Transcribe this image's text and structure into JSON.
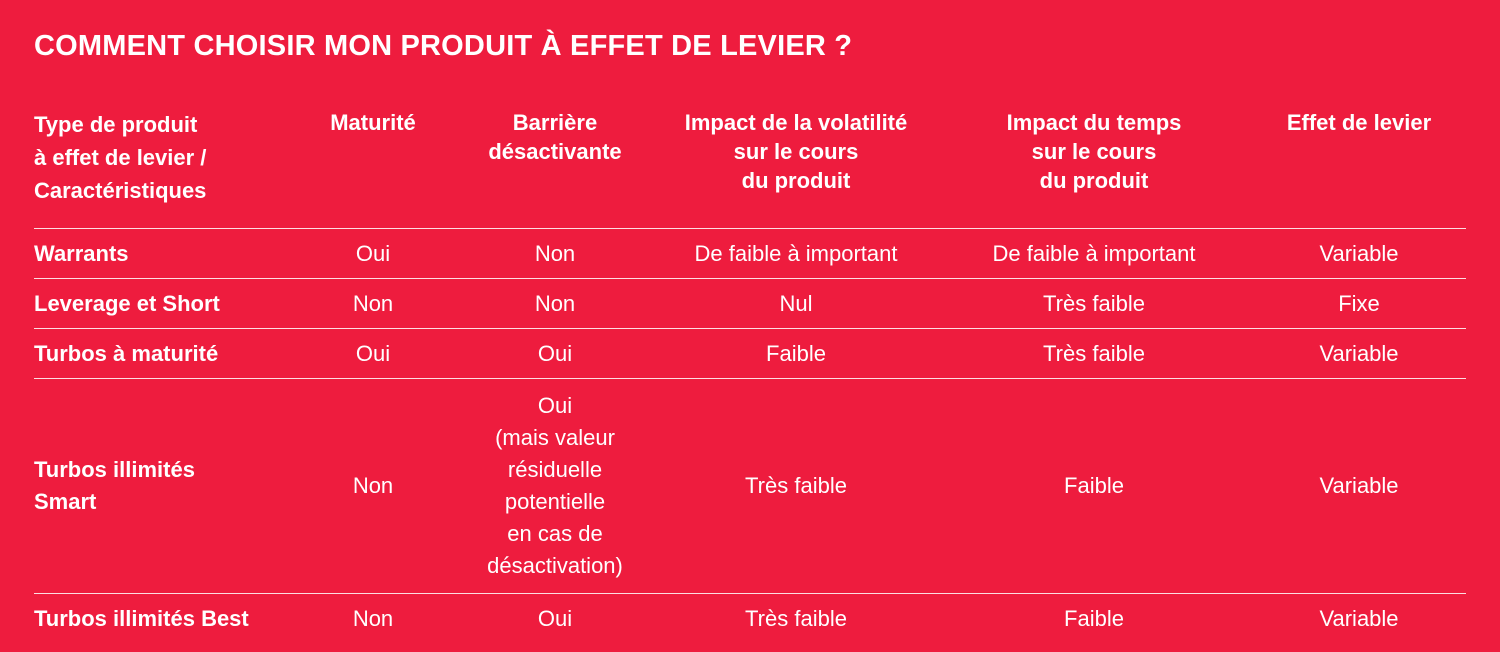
{
  "title": "COMMENT CHOISIR MON PRODUIT À EFFET DE LEVIER ?",
  "table": {
    "headers": [
      "Type de produit\nà effet de levier /\nCaractéristiques",
      "Maturité",
      "Barrière\ndésactivante",
      "Impact de la volatilité\nsur le cours\ndu produit",
      "Impact du temps\nsur le cours\ndu produit",
      "Effet de levier"
    ],
    "rows": [
      [
        "Warrants",
        "Oui",
        "Non",
        "De faible à important",
        "De faible à important",
        "Variable"
      ],
      [
        "Leverage et Short",
        "Non",
        "Non",
        "Nul",
        "Très faible",
        "Fixe"
      ],
      [
        "Turbos à maturité",
        "Oui",
        "Oui",
        "Faible",
        "Très faible",
        "Variable"
      ],
      [
        "Turbos illimités\nSmart",
        "Non",
        "Oui\n(mais valeur\nrésiduelle\npotentielle\nen cas de\ndésactivation)",
        "Très faible",
        "Faible",
        "Variable"
      ],
      [
        "Turbos illimités Best",
        "Non",
        "Oui",
        "Très faible",
        "Faible",
        "Variable"
      ]
    ]
  }
}
